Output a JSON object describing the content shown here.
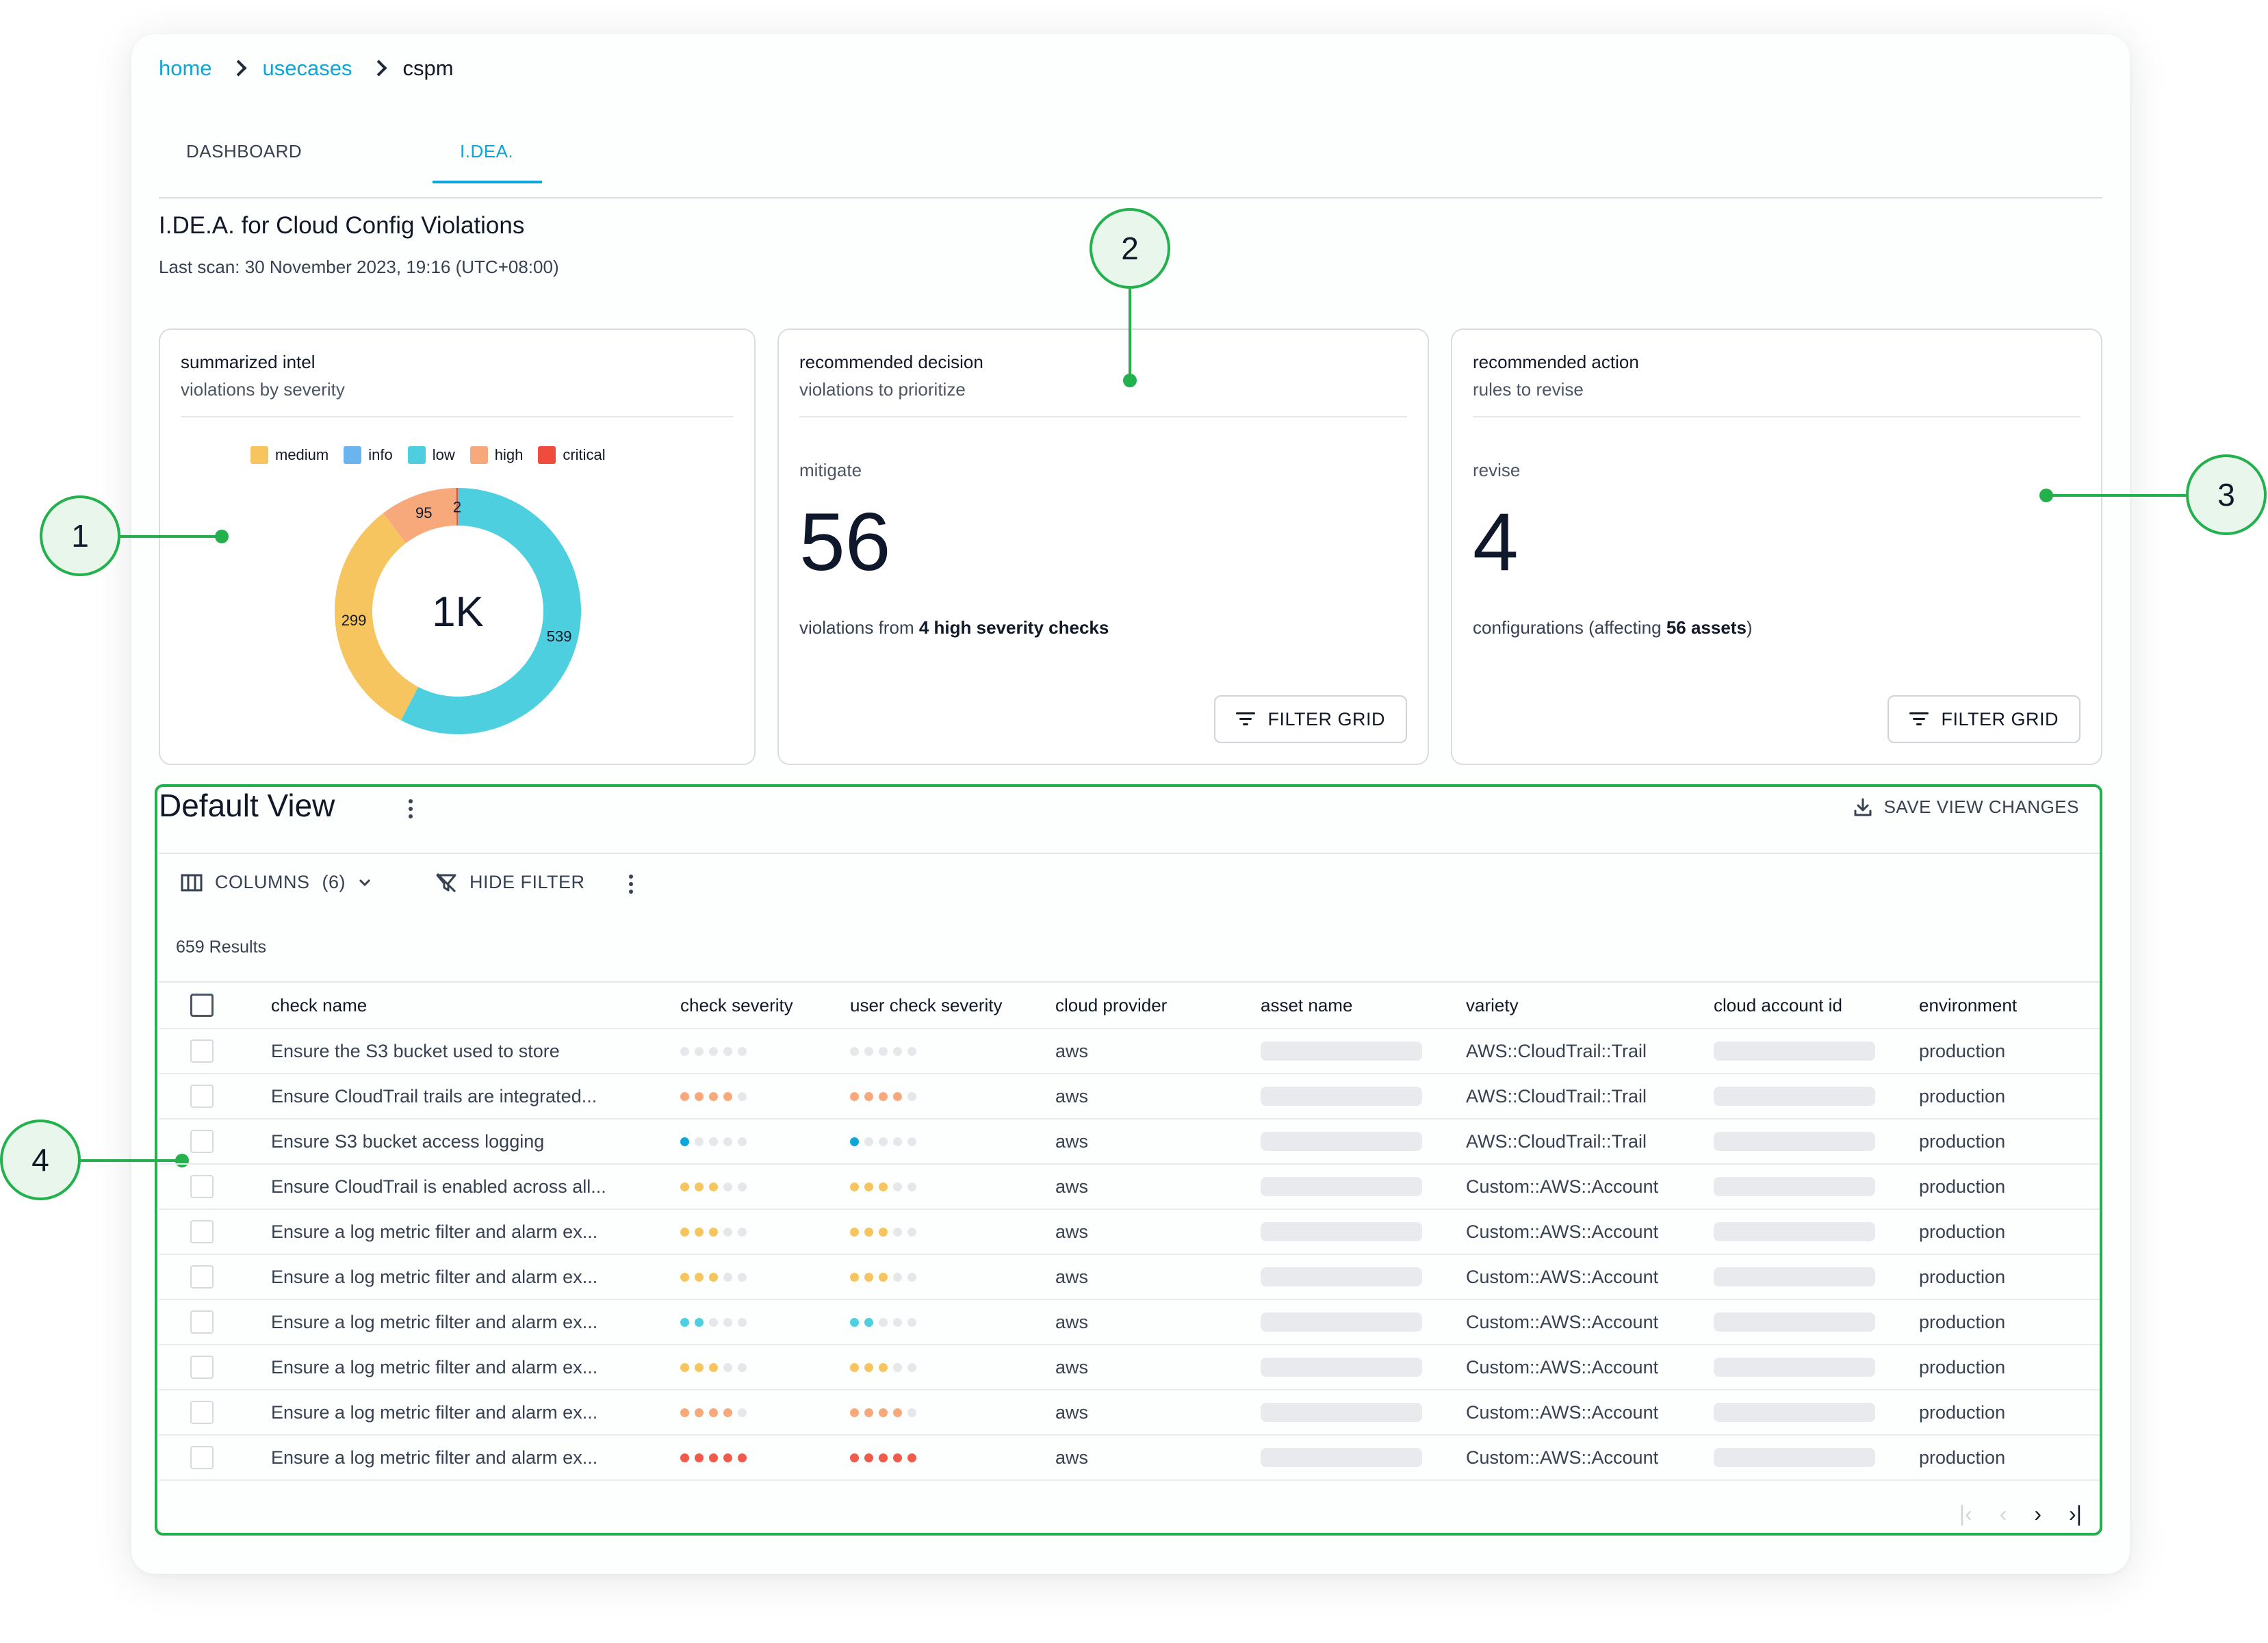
{
  "breadcrumb": {
    "home": "home",
    "usecases": "usecases",
    "current": "cspm"
  },
  "tabs": {
    "dashboard": "DASHBOARD",
    "idea": "I.DEA."
  },
  "page": {
    "title": "I.DE.A. for Cloud Config Violations",
    "last_scan": "Last scan: 30 November 2023, 19:16 (UTC+08:00)"
  },
  "intel_panel": {
    "title": "summarized intel",
    "subtitle": "violations by severity",
    "legend": [
      {
        "label": "medium",
        "color": "#f7c55f"
      },
      {
        "label": "info",
        "color": "#6cb4ee"
      },
      {
        "label": "low",
        "color": "#4ecfe0"
      },
      {
        "label": "high",
        "color": "#f8a97c"
      },
      {
        "label": "critical",
        "color": "#ef4b3f"
      }
    ],
    "center_label": "1K"
  },
  "chart_data": {
    "type": "pie",
    "categories": [
      "low",
      "medium",
      "high",
      "critical"
    ],
    "values": [
      539,
      299,
      95,
      2
    ],
    "colors": [
      "#4ecfe0",
      "#f7c55f",
      "#f8a97c",
      "#ef4b3f"
    ],
    "center_label": "1K"
  },
  "decision_panel": {
    "title": "recommended decision",
    "subtitle": "violations to prioritize",
    "label": "mitigate",
    "value": "56",
    "desc_pre": "violations from ",
    "desc_bold": "4 high severity checks",
    "button": "FILTER GRID"
  },
  "action_panel": {
    "title": "recommended action",
    "subtitle": "rules to revise",
    "label": "revise",
    "value": "4",
    "desc_pre": "configurations (affecting ",
    "desc_bold": "56 assets",
    "desc_post": ")",
    "button": "FILTER GRID"
  },
  "callouts": [
    "1",
    "2",
    "3",
    "4"
  ],
  "grid": {
    "title": "Default View",
    "save_label": "SAVE VIEW CHANGES",
    "columns_label": "COLUMNS",
    "columns_count": "(6)",
    "hide_filter_label": "HIDE FILTER",
    "results": "659 Results",
    "headers": [
      "check name",
      "check severity",
      "user check severity",
      "cloud provider",
      "asset name",
      "variety",
      "cloud account id",
      "environment"
    ],
    "rows": [
      {
        "check": "Ensure the S3 bucket used to store",
        "sev": 0,
        "color": "#e5e7eb",
        "provider": "aws",
        "variety": "AWS::CloudTrail::Trail",
        "env": "production"
      },
      {
        "check": "Ensure CloudTrail trails are integrated...",
        "sev": 4,
        "color": "#f8a97c",
        "provider": "aws",
        "variety": "AWS::CloudTrail::Trail",
        "env": "production"
      },
      {
        "check": "Ensure S3 bucket access logging",
        "sev": 1,
        "color": "#0ea5d8",
        "provider": "aws",
        "variety": "AWS::CloudTrail::Trail",
        "env": "production"
      },
      {
        "check": "Ensure CloudTrail is enabled across all...",
        "sev": 3,
        "color": "#f7c55f",
        "provider": "aws",
        "variety": "Custom::AWS::Account",
        "env": "production"
      },
      {
        "check": "Ensure a log metric filter and alarm ex...",
        "sev": 3,
        "color": "#f7c55f",
        "provider": "aws",
        "variety": "Custom::AWS::Account",
        "env": "production"
      },
      {
        "check": "Ensure a log metric filter and alarm ex...",
        "sev": 3,
        "color": "#f7c55f",
        "provider": "aws",
        "variety": "Custom::AWS::Account",
        "env": "production"
      },
      {
        "check": "Ensure a log metric filter and alarm ex...",
        "sev": 2,
        "color": "#4ecfe0",
        "provider": "aws",
        "variety": "Custom::AWS::Account",
        "env": "production"
      },
      {
        "check": "Ensure a log metric filter and alarm ex...",
        "sev": 3,
        "color": "#f7c55f",
        "provider": "aws",
        "variety": "Custom::AWS::Account",
        "env": "production"
      },
      {
        "check": "Ensure a log metric filter and alarm ex...",
        "sev": 4,
        "color": "#f8a97c",
        "provider": "aws",
        "variety": "Custom::AWS::Account",
        "env": "production"
      },
      {
        "check": "Ensure a log metric filter and alarm ex...",
        "sev": 5,
        "color": "#ef5a4a",
        "provider": "aws",
        "variety": "Custom::AWS::Account",
        "env": "production"
      }
    ]
  }
}
